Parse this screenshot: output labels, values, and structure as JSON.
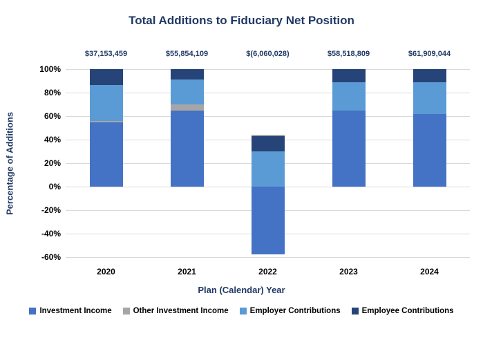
{
  "chart_data": {
    "type": "bar",
    "stacked": true,
    "title": "Total Additions to Fiduciary Net Position",
    "xlabel": "Plan (Calendar) Year",
    "ylabel": "Percentage of Additions",
    "ylim": [
      -60,
      100
    ],
    "y_ticks": [
      100,
      80,
      60,
      40,
      20,
      0,
      -20,
      -40,
      -60
    ],
    "y_tick_suffix": "%",
    "grid": true,
    "legend_position": "bottom",
    "categories": [
      "2020",
      "2021",
      "2022",
      "2023",
      "2024"
    ],
    "total_labels": [
      "$37,153,459",
      "$55,854,109",
      "$(6,060,028)",
      "$58,518,809",
      "$61,909,044"
    ],
    "series": [
      {
        "name": "Investment Income",
        "color": "#4472C4",
        "values": [
          54.5,
          65,
          -57.5,
          64.5,
          62
        ]
      },
      {
        "name": "Other Investment Income",
        "color": "#A6A6A6",
        "values": [
          1.5,
          5,
          1,
          0,
          0
        ]
      },
      {
        "name": "Employer Contributions",
        "color": "#5B9BD5",
        "values": [
          30.5,
          21,
          30,
          24.5,
          27
        ]
      },
      {
        "name": "Employee Contributions",
        "color": "#264478",
        "values": [
          13.5,
          9,
          13,
          11,
          11
        ]
      }
    ],
    "stack_draw_order": [
      [
        "Investment Income",
        "Other Investment Income",
        "Employer Contributions",
        "Employee Contributions"
      ],
      [
        "Investment Income",
        "Other Investment Income",
        "Employer Contributions",
        "Employee Contributions"
      ],
      [
        "Investment Income",
        "Employer Contributions",
        "Employee Contributions",
        "Other Investment Income"
      ],
      [
        "Investment Income",
        "Other Investment Income",
        "Employer Contributions",
        "Employee Contributions"
      ],
      [
        "Investment Income",
        "Other Investment Income",
        "Employer Contributions",
        "Employee Contributions"
      ]
    ],
    "colors": {
      "accent_text": "#1F3864",
      "tick_text": "#000000",
      "gridline": "#D9D9D9",
      "background": "#FFFFFF"
    }
  }
}
